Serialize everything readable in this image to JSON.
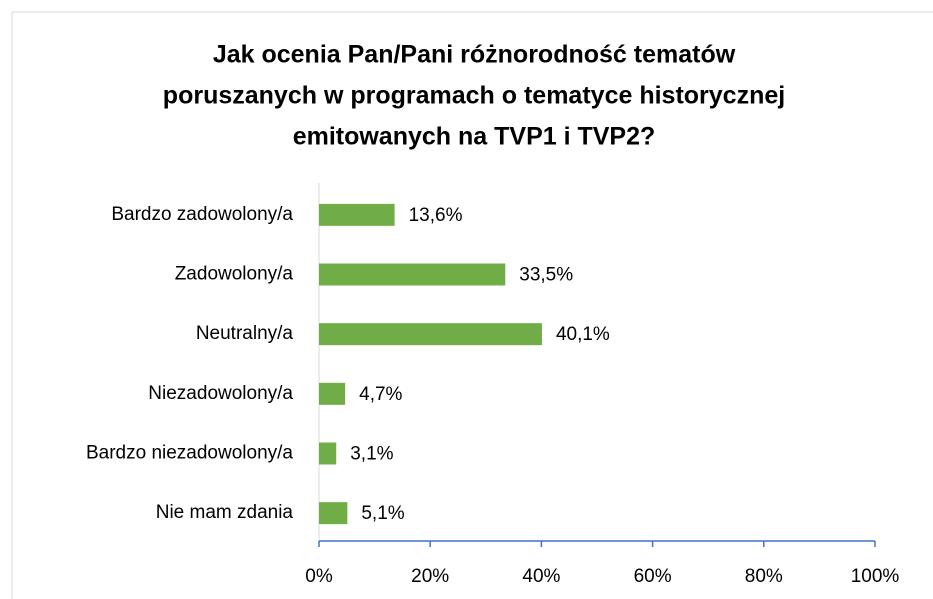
{
  "chart_data": {
    "type": "bar",
    "orientation": "horizontal",
    "title": [
      "Jak ocenia Pan/Pani różnorodność tematów",
      "poruszanych w programach o tematyce historycznej",
      "emitowanych na TVP1 i TVP2?"
    ],
    "categories": [
      "Bardzo zadowolony/a",
      "Zadowolony/a",
      "Neutralny/a",
      "Niezadowolony/a",
      "Bardzo niezadowolony/a",
      "Nie mam zdania"
    ],
    "values": [
      13.6,
      33.5,
      40.1,
      4.7,
      3.1,
      5.1
    ],
    "value_labels": [
      "13,6%",
      "33,5%",
      "40,1%",
      "4,7%",
      "3,1%",
      "5,1%"
    ],
    "color": "#70ad47",
    "xlim": [
      0,
      100
    ],
    "xticks": [
      {
        "value": 0,
        "label": "0%"
      },
      {
        "value": 20,
        "label": "20%"
      },
      {
        "value": 40,
        "label": "40%"
      },
      {
        "value": 60,
        "label": "60%"
      },
      {
        "value": 80,
        "label": "80%"
      },
      {
        "value": 100,
        "label": "100%"
      }
    ],
    "grid": false
  }
}
